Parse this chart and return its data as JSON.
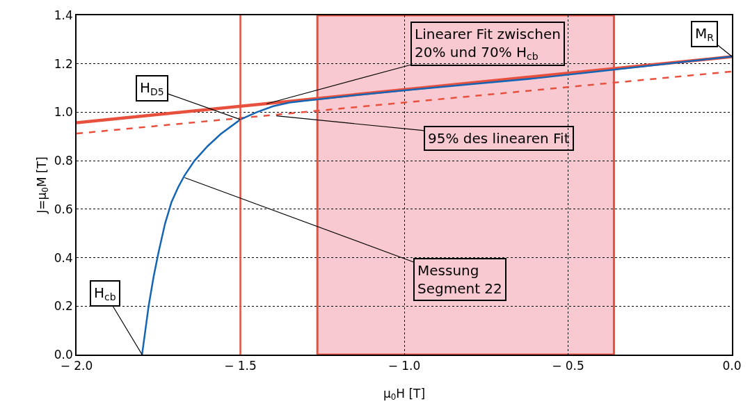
{
  "chart_data": {
    "type": "line",
    "xlabel": "μ$_{0}$H [T]",
    "ylabel": "J=μ$_{0}$M [T]",
    "xlim": [
      -2,
      0
    ],
    "ylim": [
      0,
      1.4
    ],
    "xticks": [
      {
        "value": -2,
        "label": "− 2.0"
      },
      {
        "value": -1.5,
        "label": "− 1.5"
      },
      {
        "value": -1,
        "label": "− 1.0"
      },
      {
        "value": -0.5,
        "label": "− 0.5"
      },
      {
        "value": 0,
        "label": "0.0"
      }
    ],
    "yticks": [
      {
        "value": 0,
        "label": "0.0"
      },
      {
        "value": 0.2,
        "label": "0.2"
      },
      {
        "value": 0.4,
        "label": "0.4"
      },
      {
        "value": 0.6,
        "label": "0.6"
      },
      {
        "value": 0.8,
        "label": "0.8"
      },
      {
        "value": 1,
        "label": "1.0"
      },
      {
        "value": 1.2,
        "label": "1.2"
      },
      {
        "value": 1.4,
        "label": "1.4"
      }
    ],
    "grid": true,
    "marker": "none",
    "series": [
      {
        "color": "#e8503e",
        "line_style": "solid",
        "x": [
          -2,
          0
        ],
        "values": [
          0.957,
          1.229
        ]
      },
      {
        "color": "#e8503e",
        "line_style": "dashed",
        "x": [
          -2,
          0
        ],
        "values": [
          0.912,
          1.168
        ]
      },
      {
        "color": "#1565b5",
        "line_style": "solid",
        "x": [
          -1.8,
          -1.79,
          -1.78,
          -1.765,
          -1.75,
          -1.73,
          -1.71,
          -1.69,
          -1.67,
          -1.64,
          -1.6,
          -1.56,
          -1.5,
          -1.45,
          -1.4,
          -1.35,
          -1.3,
          -1.25,
          -1.15,
          -1.0,
          -0.8,
          -0.6,
          -0.4,
          -0.2,
          0
        ],
        "values": [
          0,
          0.1,
          0.2,
          0.32,
          0.42,
          0.54,
          0.63,
          0.69,
          0.74,
          0.8,
          0.86,
          0.91,
          0.97,
          1.0,
          1.025,
          1.04,
          1.048,
          1.055,
          1.07,
          1.09,
          1.115,
          1.14,
          1.17,
          1.2,
          1.23
        ]
      }
    ],
    "bands": [
      {
        "axis": "x",
        "from": -1.265,
        "to": -0.36,
        "color": "#f8c9d0"
      }
    ],
    "ref_lines": [
      {
        "axis": "x",
        "value": -1.5,
        "color": "#e8503e"
      }
    ],
    "annotations": [
      {
        "text": "H$_{cb}$",
        "x": -1.8,
        "y": 0
      },
      {
        "text": "H$_{D5}$",
        "x": -1.5,
        "y": 0.97
      },
      {
        "text": "Linearer Fit zwischen\n20% und 70% H$_{cb}$",
        "x": -1.42,
        "y": 1.035
      },
      {
        "text": "95% des linearen Fit",
        "x": -1.39,
        "y": 0.985
      },
      {
        "text": "Messung\nSegment 22",
        "x": -1.67,
        "y": 0.73
      },
      {
        "text": "M$_{R}$",
        "x": 0,
        "y": 1.23
      }
    ]
  }
}
